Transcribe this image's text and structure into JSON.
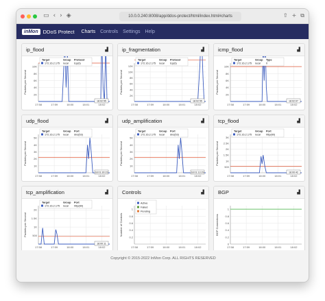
{
  "browser": {
    "url": "10.0.0.240:8008/app/ddos-protect/html/index.html#charts"
  },
  "navbar": {
    "logo": "inMon",
    "app_title": "DDoS Protect",
    "links": [
      "Charts",
      "Controls",
      "Settings",
      "Help"
    ],
    "active_link": "Charts"
  },
  "panels": [
    {
      "title": "ip_flood",
      "group_label": "Group",
      "extra_label": "Protocol",
      "target_value": "172.16.2.175",
      "group_value": "local",
      "extra_value": "tcp(6)",
      "time_label": "18:02:55"
    },
    {
      "title": "ip_fragmentation",
      "group_label": "Group",
      "extra_label": "Protocol",
      "target_value": "172.16.2.175",
      "group_value": "local",
      "extra_value": "tcp(6)",
      "time_label": "18:02:55"
    },
    {
      "title": "icmp_flood",
      "group_label": "Group",
      "extra_label": "Type",
      "target_value": "172.16.2.175",
      "group_value": "local",
      "extra_value": "0",
      "time_label": "18:02:07"
    },
    {
      "title": "udp_flood",
      "group_label": "Group",
      "extra_label": "Port",
      "target_value": "172.16.2.175",
      "group_value": "local",
      "extra_value": "dns(53)",
      "time_label": "18:01:30:23"
    },
    {
      "title": "udp_amplification",
      "group_label": "Group",
      "extra_label": "Port",
      "target_value": "172.16.2.175",
      "group_value": "local",
      "extra_value": "dns(53)",
      "time_label": "18:01:13:29"
    },
    {
      "title": "tcp_flood",
      "group_label": "Group",
      "extra_label": "Port",
      "target_value": "172.16.2.175",
      "group_value": "local",
      "extra_value": "http(80)",
      "time_label": "18:00:42"
    },
    {
      "title": "tcp_amplification",
      "group_label": "Group",
      "extra_label": "Port",
      "target_value": "172.16.2.175",
      "group_value": "local",
      "extra_value": "http(80)",
      "time_label": "18:00:11"
    },
    {
      "title": "Controls"
    },
    {
      "title": "BGP"
    }
  ],
  "common": {
    "target_header": "Target",
    "y_label": "Packets per Second",
    "x_ticks": [
      "17:58",
      "17:59",
      "18:00",
      "18:01",
      "18:02"
    ],
    "colors": {
      "series": "#3a5bbf",
      "threshold": "#e05a3a",
      "grid": "#e6e6e6"
    }
  },
  "controls_chart": {
    "y_label": "Number of Controls",
    "legend": [
      {
        "label": "Active",
        "color": "#3a5bbf"
      },
      {
        "label": "Failed",
        "color": "#5b9a3a"
      },
      {
        "label": "Pending",
        "color": "#e07a3a"
      }
    ],
    "y_ticks": [
      "0.2",
      "0.4",
      "0.6",
      "0.8",
      "1"
    ]
  },
  "bgp_chart": {
    "y_label": "BGP Connections",
    "y_ticks": [
      "0",
      "0.2",
      "0.4",
      "0.6",
      "0.8",
      "1"
    ],
    "value": 1,
    "color": "#6ac26a"
  },
  "footer": {
    "text": "Copyright © 2015-2022 InMon Corp. ALL RIGHTS RESERVED"
  },
  "chart_data": [
    {
      "type": "line",
      "title": "ip_flood",
      "y_ticks": [
        "2K",
        "4K",
        "6K",
        "8K",
        "10K"
      ],
      "threshold": 5.5,
      "series": [
        {
          "name": "172.16.2.175 local tcp(6)",
          "x": [
            0,
            60,
            90,
            100,
            105,
            110,
            115,
            120,
            125,
            130,
            135,
            140,
            145,
            150,
            160,
            170,
            175,
            180,
            185,
            190,
            195,
            200,
            210,
            220,
            230,
            236,
            240,
            245,
            250,
            255,
            260,
            270
          ],
          "y": [
            0,
            0,
            0,
            8,
            2,
            7,
            0,
            0,
            0,
            0,
            0,
            0,
            0,
            0,
            0,
            0,
            0,
            0,
            0,
            0,
            0,
            0,
            0,
            0,
            0,
            0,
            9,
            2,
            0,
            8,
            0,
            0
          ]
        }
      ]
    },
    {
      "type": "line",
      "title": "ip_fragmentation",
      "y_ticks": [
        "2K",
        "4K",
        "6K",
        "8K",
        "10K",
        "12K"
      ],
      "threshold": 7,
      "series": [
        {
          "name": "172.16.2.175 local tcp(6)",
          "x": [
            0,
            240,
            248,
            252,
            256,
            260,
            264,
            270
          ],
          "y": [
            0,
            0,
            6,
            11,
            9,
            4,
            0,
            0
          ]
        }
      ]
    },
    {
      "type": "line",
      "title": "icmp_flood",
      "y_ticks": [
        "2K",
        "4K",
        "6K",
        "8K",
        "10K"
      ],
      "threshold": 5,
      "series": [
        {
          "name": "172.16.2.175 local 0",
          "x": [
            0,
            120,
            124,
            128,
            132,
            136,
            140,
            270
          ],
          "y": [
            0,
            0,
            8,
            3,
            9,
            2,
            0,
            0
          ]
        }
      ]
    },
    {
      "type": "line",
      "title": "udp_flood",
      "y_ticks": [
        "1K",
        "2K",
        "3K",
        "4K",
        "5K"
      ],
      "threshold": 2.2,
      "series": [
        {
          "name": "172.16.2.175 local dns(53)",
          "x": [
            0,
            180,
            186,
            190,
            195,
            200,
            206,
            270
          ],
          "y": [
            0,
            0,
            4,
            2,
            5,
            3,
            0,
            0
          ]
        }
      ]
    },
    {
      "type": "line",
      "title": "udp_amplification",
      "y_ticks": [
        "1K",
        "2K",
        "3K",
        "4K",
        "5K"
      ],
      "threshold": 2.2,
      "series": [
        {
          "name": "172.16.2.175 local dns(53)",
          "x": [
            0,
            160,
            166,
            170,
            175,
            180,
            186,
            270
          ],
          "y": [
            0,
            0,
            4,
            2,
            5,
            3,
            0,
            0
          ]
        }
      ]
    },
    {
      "type": "line",
      "title": "tcp_flood",
      "y_ticks": [
        "500",
        "1K",
        "1.5K",
        "2K",
        "2.5K",
        "3K"
      ],
      "threshold": 1.1,
      "series": [
        {
          "name": "172.16.2.175 local http(80)",
          "x": [
            0,
            110,
            116,
            120,
            124,
            130,
            136,
            270
          ],
          "y": [
            0,
            0,
            2.8,
            1.5,
            3,
            1.2,
            0,
            0
          ]
        }
      ]
    },
    {
      "type": "line",
      "title": "tcp_amplification",
      "y_ticks": [
        "500",
        "1K",
        "1.5K",
        "2K"
      ],
      "threshold": 0.9,
      "series": [
        {
          "name": "172.16.2.175 local http(80)",
          "x": [
            0,
            10,
            16,
            22,
            60,
            66,
            70,
            76,
            270
          ],
          "y": [
            0,
            0,
            1.9,
            0,
            0,
            1.7,
            1.2,
            0,
            0
          ]
        }
      ]
    }
  ]
}
